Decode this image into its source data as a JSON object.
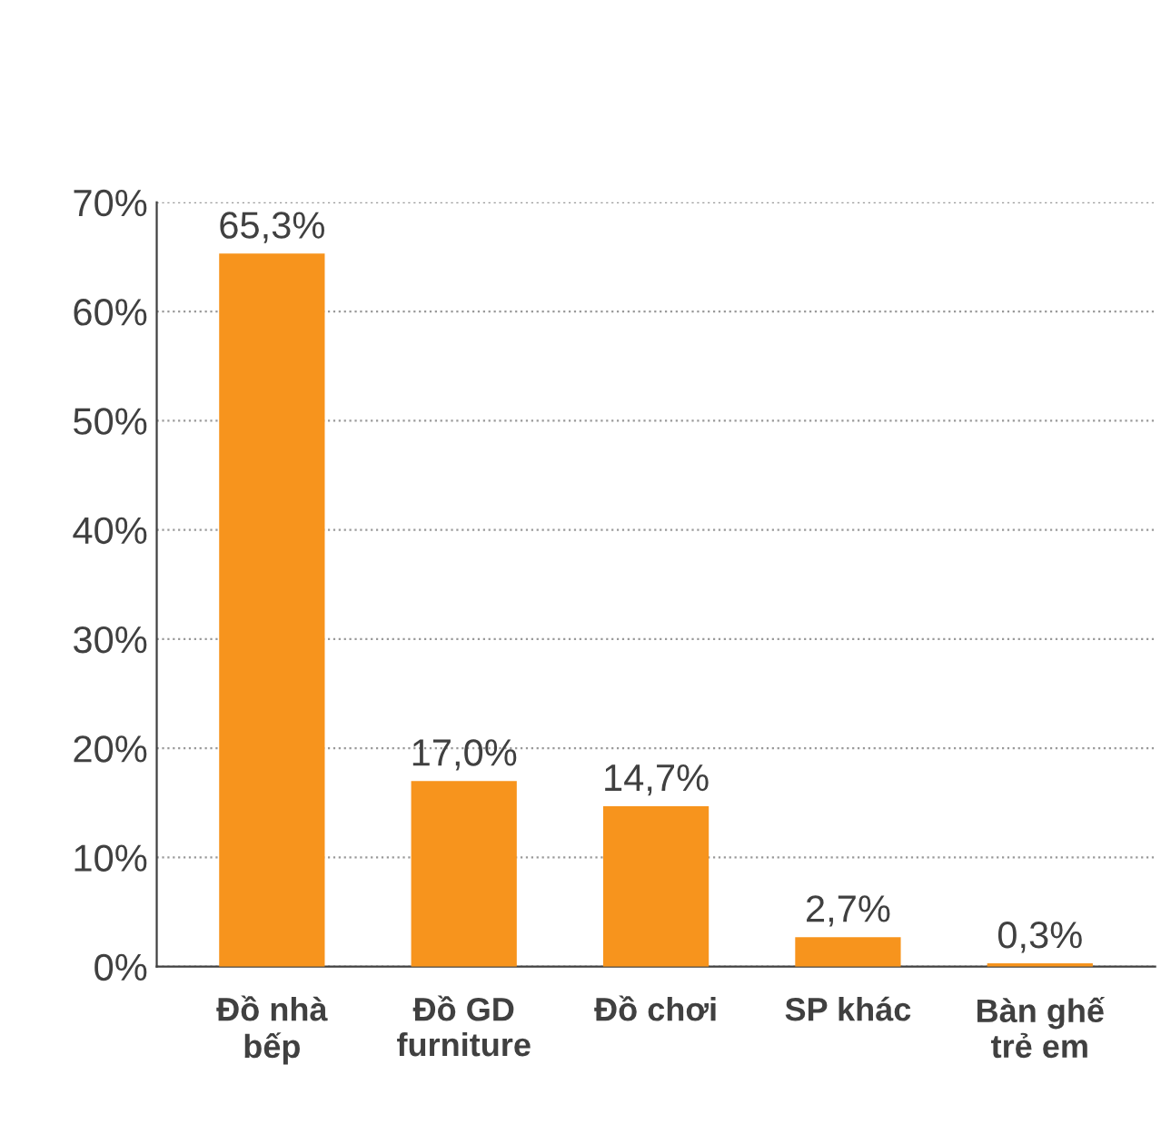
{
  "chart_data": {
    "type": "bar",
    "categories": [
      "Đồ nhà\nbếp",
      "Đồ GD\nfurniture",
      "Đồ chơi",
      "SP khác",
      "Bàn ghế\ntrẻ em"
    ],
    "values": [
      65.3,
      17.0,
      14.7,
      2.7,
      0.3
    ],
    "value_labels": [
      "65,3%",
      "17,0%",
      "14,7%",
      "2,7%",
      "0,3%"
    ],
    "color": "#f7941d",
    "ylim": [
      0,
      70
    ],
    "yticks": [
      {
        "value": 0,
        "label": "0%"
      },
      {
        "value": 10,
        "label": "10%"
      },
      {
        "value": 20,
        "label": "20%"
      },
      {
        "value": 30,
        "label": "30%"
      },
      {
        "value": 40,
        "label": "40%"
      },
      {
        "value": 50,
        "label": "50%"
      },
      {
        "value": 60,
        "label": "60%"
      },
      {
        "value": 70,
        "label": "70%"
      }
    ],
    "grid": "y",
    "legend": false
  }
}
